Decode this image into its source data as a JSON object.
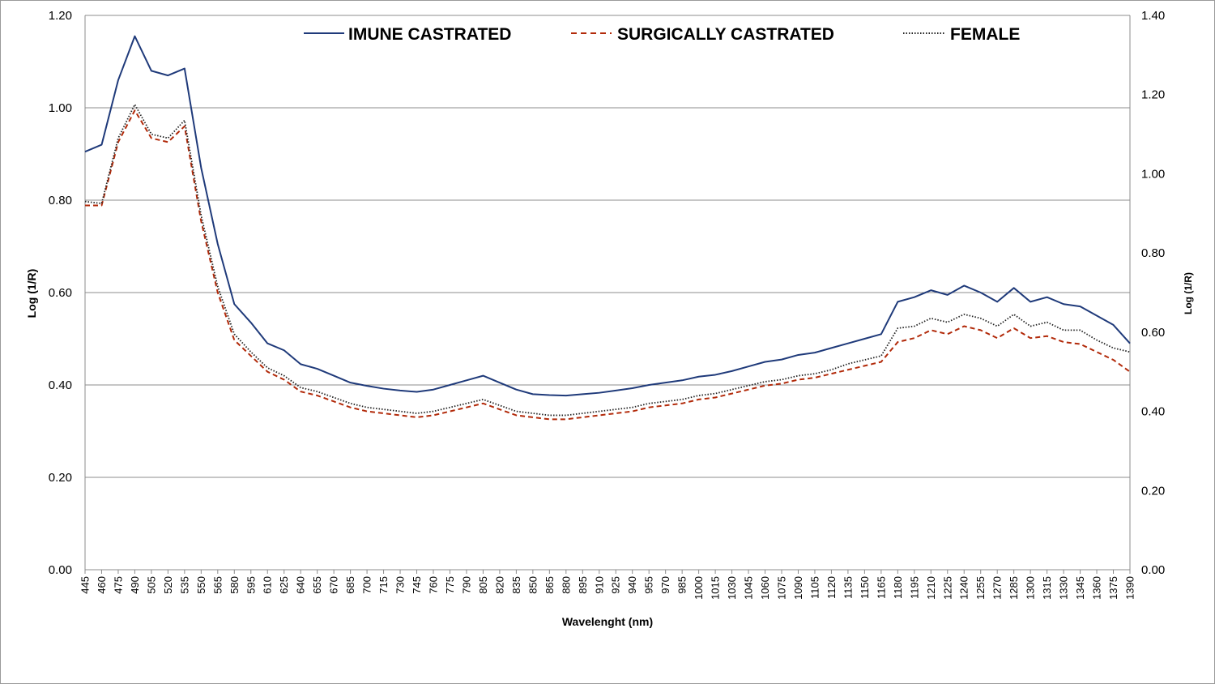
{
  "chart_data": {
    "type": "line",
    "title": "",
    "xlabel": "Wavelenght (nm)",
    "ylabel_left": "Log (1/R)",
    "ylabel_right": "Log (1/R)",
    "ylim_left": [
      0,
      1.2
    ],
    "ylim_right": [
      0,
      1.4
    ],
    "yticks_left": [
      "0.00",
      "0.20",
      "0.40",
      "0.60",
      "0.80",
      "1.00",
      "1.20"
    ],
    "yticks_right": [
      "0.00",
      "0.20",
      "0.40",
      "0.60",
      "0.80",
      "1.00",
      "1.20",
      "1.40"
    ],
    "grid": "horizontal",
    "legend_position": "top",
    "x": [
      445,
      460,
      475,
      490,
      505,
      520,
      535,
      550,
      565,
      580,
      595,
      610,
      625,
      640,
      655,
      670,
      685,
      700,
      715,
      730,
      745,
      760,
      775,
      790,
      805,
      820,
      835,
      850,
      865,
      880,
      895,
      910,
      925,
      940,
      955,
      970,
      985,
      1000,
      1015,
      1030,
      1045,
      1060,
      1075,
      1090,
      1105,
      1120,
      1135,
      1150,
      1165,
      1180,
      1195,
      1210,
      1225,
      1240,
      1255,
      1270,
      1285,
      1300,
      1315,
      1330,
      1345,
      1360,
      1375,
      1390
    ],
    "series": [
      {
        "name": "IMUNE CASTRATED",
        "color": "#1f3a7a",
        "style": "solid",
        "axis": "left",
        "values": [
          0.905,
          0.92,
          1.06,
          1.155,
          1.08,
          1.07,
          1.085,
          0.87,
          0.705,
          0.575,
          0.535,
          0.49,
          0.475,
          0.445,
          0.435,
          0.42,
          0.405,
          0.398,
          0.392,
          0.388,
          0.385,
          0.39,
          0.4,
          0.41,
          0.42,
          0.405,
          0.39,
          0.38,
          0.378,
          0.377,
          0.38,
          0.383,
          0.388,
          0.393,
          0.4,
          0.405,
          0.41,
          0.418,
          0.422,
          0.43,
          0.44,
          0.45,
          0.455,
          0.465,
          0.47,
          0.48,
          0.49,
          0.5,
          0.51,
          0.58,
          0.59,
          0.605,
          0.595,
          0.615,
          0.6,
          0.58,
          0.61,
          0.58,
          0.59,
          0.575,
          0.57,
          0.55,
          0.53,
          0.49
        ]
      },
      {
        "name": "SURGICALLY CASTRATED",
        "color": "#b22a0a",
        "style": "dashed",
        "axis": "right",
        "values": [
          0.92,
          0.92,
          1.08,
          1.16,
          1.09,
          1.08,
          1.12,
          0.88,
          0.7,
          0.58,
          0.54,
          0.5,
          0.48,
          0.45,
          0.44,
          0.425,
          0.41,
          0.4,
          0.395,
          0.39,
          0.385,
          0.39,
          0.4,
          0.41,
          0.42,
          0.405,
          0.39,
          0.385,
          0.38,
          0.38,
          0.385,
          0.39,
          0.395,
          0.4,
          0.41,
          0.415,
          0.42,
          0.43,
          0.435,
          0.445,
          0.455,
          0.465,
          0.47,
          0.48,
          0.485,
          0.495,
          0.505,
          0.515,
          0.525,
          0.575,
          0.585,
          0.605,
          0.595,
          0.615,
          0.605,
          0.585,
          0.61,
          0.585,
          0.59,
          0.575,
          0.57,
          0.55,
          0.53,
          0.5
        ]
      },
      {
        "name": "FEMALE",
        "color": "#222222",
        "style": "dotted",
        "axis": "right",
        "values": [
          0.93,
          0.925,
          1.09,
          1.175,
          1.1,
          1.09,
          1.135,
          0.895,
          0.715,
          0.595,
          0.55,
          0.51,
          0.49,
          0.46,
          0.45,
          0.435,
          0.42,
          0.41,
          0.405,
          0.4,
          0.395,
          0.4,
          0.41,
          0.42,
          0.43,
          0.415,
          0.4,
          0.395,
          0.39,
          0.39,
          0.395,
          0.4,
          0.405,
          0.41,
          0.42,
          0.425,
          0.43,
          0.44,
          0.445,
          0.455,
          0.465,
          0.475,
          0.48,
          0.49,
          0.495,
          0.505,
          0.52,
          0.53,
          0.54,
          0.61,
          0.615,
          0.635,
          0.625,
          0.645,
          0.635,
          0.615,
          0.645,
          0.615,
          0.625,
          0.605,
          0.605,
          0.58,
          0.56,
          0.55
        ]
      }
    ]
  }
}
